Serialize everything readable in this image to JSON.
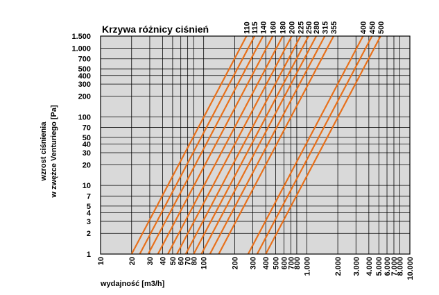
{
  "chart_data": {
    "type": "line",
    "title": "Krzywa różnicy ciśnień",
    "xlabel": "wydajność [m3/h]",
    "ylabel_line1": "wzrost ciśnienia",
    "ylabel_line2": "w zwężce Venturiego [Pa]",
    "x_scale": "log",
    "y_scale": "log",
    "xlim": [
      10,
      10000
    ],
    "ylim": [
      1,
      1500
    ],
    "grid": true,
    "x_ticks": [
      {
        "value": 10,
        "label": "10"
      },
      {
        "value": 20,
        "label": "20"
      },
      {
        "value": 30,
        "label": "30"
      },
      {
        "value": 40,
        "label": "40"
      },
      {
        "value": 50,
        "label": "50"
      },
      {
        "value": 60,
        "label": "60"
      },
      {
        "value": 70,
        "label": "70"
      },
      {
        "value": 80,
        "label": "80"
      },
      {
        "value": 100,
        "label": "100"
      },
      {
        "value": 200,
        "label": "200"
      },
      {
        "value": 300,
        "label": "300"
      },
      {
        "value": 400,
        "label": "400"
      },
      {
        "value": 500,
        "label": "500"
      },
      {
        "value": 600,
        "label": "600"
      },
      {
        "value": 700,
        "label": "700"
      },
      {
        "value": 800,
        "label": "800"
      },
      {
        "value": 1000,
        "label": "1.000"
      },
      {
        "value": 2000,
        "label": "2.000"
      },
      {
        "value": 3000,
        "label": "3.000"
      },
      {
        "value": 4000,
        "label": "4.000"
      },
      {
        "value": 5000,
        "label": "5.000"
      },
      {
        "value": 6000,
        "label": "6.000"
      },
      {
        "value": 7000,
        "label": "7.000"
      },
      {
        "value": 8000,
        "label": "8.000"
      },
      {
        "value": 10000,
        "label": "10.000"
      }
    ],
    "y_ticks": [
      {
        "value": 1,
        "label": "1"
      },
      {
        "value": 2,
        "label": "2"
      },
      {
        "value": 3,
        "label": "3"
      },
      {
        "value": 4,
        "label": "4"
      },
      {
        "value": 5,
        "label": "5"
      },
      {
        "value": 7,
        "label": "7"
      },
      {
        "value": 10,
        "label": "10"
      },
      {
        "value": 20,
        "label": "20"
      },
      {
        "value": 30,
        "label": "30"
      },
      {
        "value": 40,
        "label": "40"
      },
      {
        "value": 50,
        "label": "50"
      },
      {
        "value": 70,
        "label": "70"
      },
      {
        "value": 100,
        "label": "100"
      },
      {
        "value": 200,
        "label": "200"
      },
      {
        "value": 300,
        "label": "300"
      },
      {
        "value": 400,
        "label": "400"
      },
      {
        "value": 500,
        "label": "500"
      },
      {
        "value": 700,
        "label": "700"
      },
      {
        "value": 1000,
        "label": "1.000"
      },
      {
        "value": 1500,
        "label": "1.500"
      }
    ],
    "series": [
      {
        "name": "110",
        "x": [
          20,
          260
        ],
        "y": [
          1,
          1500
        ]
      },
      {
        "name": "115",
        "x": [
          24,
          312
        ],
        "y": [
          1,
          1500
        ]
      },
      {
        "name": "140",
        "x": [
          29,
          377
        ],
        "y": [
          1,
          1500
        ]
      },
      {
        "name": "160",
        "x": [
          36,
          468
        ],
        "y": [
          1,
          1500
        ]
      },
      {
        "name": "180",
        "x": [
          45,
          585
        ],
        "y": [
          1,
          1500
        ]
      },
      {
        "name": "200",
        "x": [
          55,
          715
        ],
        "y": [
          1,
          1500
        ]
      },
      {
        "name": "225",
        "x": [
          67,
          871
        ],
        "y": [
          1,
          1500
        ]
      },
      {
        "name": "250",
        "x": [
          80,
          1040
        ],
        "y": [
          1,
          1500
        ]
      },
      {
        "name": "280",
        "x": [
          95,
          1235
        ],
        "y": [
          1,
          1500
        ]
      },
      {
        "name": "315",
        "x": [
          115,
          1495
        ],
        "y": [
          1,
          1500
        ]
      },
      {
        "name": "355",
        "x": [
          140,
          1820
        ],
        "y": [
          1,
          1500
        ]
      },
      {
        "name": "400",
        "x": [
          270,
          3510
        ],
        "y": [
          1,
          1500
        ]
      },
      {
        "name": "450",
        "x": [
          330,
          4290
        ],
        "y": [
          1,
          1500
        ]
      },
      {
        "name": "500",
        "x": [
          400,
          5200
        ],
        "y": [
          1,
          1500
        ]
      }
    ],
    "colors": {
      "line": "#e8701a",
      "plot_bg": "#d9d9d9",
      "grid": "#000000"
    }
  }
}
